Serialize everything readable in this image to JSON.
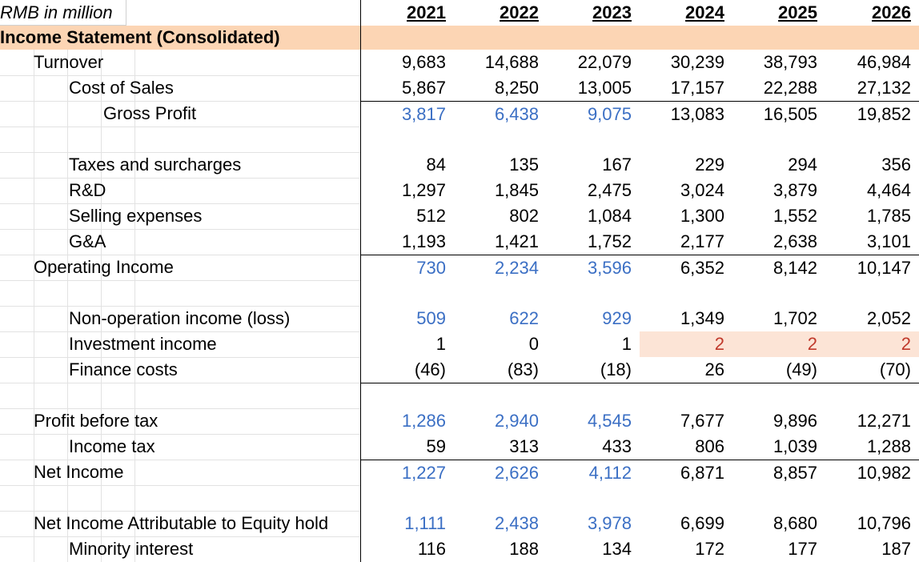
{
  "sheet": {
    "unit_label": "RMB in million",
    "years": [
      "2021",
      "2022",
      "2023",
      "2024",
      "2025",
      "2026"
    ],
    "section_title": "Income Statement (Consolidated)",
    "rows": {
      "turnover": {
        "label": "Turnover",
        "values": [
          "9,683",
          "14,688",
          "22,079",
          "30,239",
          "38,793",
          "46,984"
        ]
      },
      "cost_of_sales": {
        "label": "Cost of Sales",
        "values": [
          "5,867",
          "8,250",
          "13,005",
          "17,157",
          "22,288",
          "27,132"
        ]
      },
      "gross_profit": {
        "label": "Gross Profit",
        "values": [
          "3,817",
          "6,438",
          "9,075",
          "13,083",
          "16,505",
          "19,852"
        ]
      },
      "taxes_surcharges": {
        "label": "Taxes and surcharges",
        "values": [
          "84",
          "135",
          "167",
          "229",
          "294",
          "356"
        ]
      },
      "rnd": {
        "label": "R&D",
        "values": [
          "1,297",
          "1,845",
          "2,475",
          "3,024",
          "3,879",
          "4,464"
        ]
      },
      "selling_expenses": {
        "label": "Selling expenses",
        "values": [
          "512",
          "802",
          "1,084",
          "1,300",
          "1,552",
          "1,785"
        ]
      },
      "gna": {
        "label": "G&A",
        "values": [
          "1,193",
          "1,421",
          "1,752",
          "2,177",
          "2,638",
          "3,101"
        ]
      },
      "operating_income": {
        "label": "Operating Income",
        "values": [
          "730",
          "2,234",
          "3,596",
          "6,352",
          "8,142",
          "10,147"
        ]
      },
      "non_operation_income": {
        "label": "Non-operation income (loss)",
        "values": [
          "509",
          "622",
          "929",
          "1,349",
          "1,702",
          "2,052"
        ]
      },
      "investment_income": {
        "label": "Investment income",
        "values": [
          "1",
          "0",
          "1",
          "2",
          "2",
          "2"
        ]
      },
      "finance_costs": {
        "label": "Finance costs",
        "values": [
          "(46)",
          "(83)",
          "(18)",
          "26",
          "(49)",
          "(70)"
        ]
      },
      "profit_before_tax": {
        "label": "Profit before tax",
        "values": [
          "1,286",
          "2,940",
          "4,545",
          "7,677",
          "9,896",
          "12,271"
        ]
      },
      "income_tax": {
        "label": "Income tax",
        "values": [
          "59",
          "313",
          "433",
          "806",
          "1,039",
          "1,288"
        ]
      },
      "net_income": {
        "label": "Net Income",
        "values": [
          "1,227",
          "2,626",
          "4,112",
          "6,871",
          "8,857",
          "10,982"
        ]
      },
      "net_income_attr": {
        "label": "Net Income Attributable to Equity hold",
        "values": [
          "1,111",
          "2,438",
          "3,978",
          "6,699",
          "8,680",
          "10,796"
        ]
      },
      "minority_interest": {
        "label": "Minority interest",
        "values": [
          "116",
          "188",
          "134",
          "172",
          "177",
          "187"
        ]
      }
    },
    "colors": {
      "input_blue": "#3b6fc4",
      "forecast_red": "#c0392b",
      "section_band": "#fcd5b4",
      "highlight": "#fce4d6"
    }
  }
}
